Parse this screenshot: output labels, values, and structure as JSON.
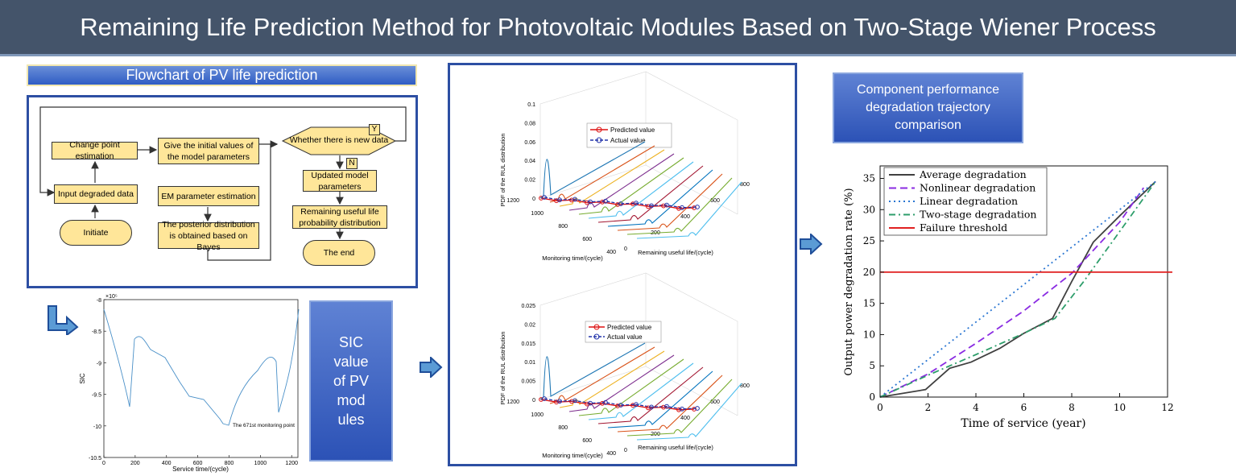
{
  "title": "Remaining Life Prediction Method for Photovoltaic Modules Based on Two-Stage Wiener Process",
  "flowchart": {
    "heading": "Flowchart of PV life prediction",
    "boxes": {
      "change_point": "Change point estimation",
      "initial_values": "Give the initial values of the model parameters",
      "input_data": "Input degraded data",
      "initiate": "Initiate",
      "em": "EM parameter estimation",
      "posterior": "The posterior distribution is obtained based on Bayes",
      "decision": "Whether there is new data",
      "updated": "Updated model parameters",
      "rul_dist": "Remaining useful life probability distribution",
      "end": "The end"
    },
    "yes_label": "Y",
    "no_label": "N"
  },
  "sic_panel": "SIC value of PV mod ules",
  "sic_chart": {
    "ylabel": "SIC",
    "xlabel": "Service time/(cycle)",
    "exponent": "×10⁵",
    "yticks": [
      "-8",
      "-8.5",
      "-9",
      "-9.5",
      "-10",
      "-10.5"
    ],
    "xticks": [
      "0",
      "200",
      "400",
      "600",
      "800",
      "1000",
      "1200"
    ],
    "annotation": "The 671st monitoring point",
    "color": "#4a90c8"
  },
  "rul_top": {
    "zlabel": "PDF of the RUL distribution",
    "xlabel": "Monitoring time/(cycle)",
    "ylabel": "Remaining useful life/(cycle)",
    "zticks": [
      "0",
      "0.02",
      "0.04",
      "0.06",
      "0.08",
      "0.1"
    ],
    "mt_ticks": [
      "1200",
      "1000",
      "800",
      "600",
      "400"
    ],
    "rul_ticks": [
      "0",
      "200",
      "400",
      "600",
      "800"
    ],
    "legend": [
      "Predicted value",
      "Actual value"
    ]
  },
  "rul_bottom": {
    "zlabel": "PDF of the RUL distribution",
    "xlabel": "Monitoring time/(cycle)",
    "ylabel": "Remaining useful life/(cycle)",
    "zticks": [
      "0",
      "0.005",
      "0.01",
      "0.015",
      "0.02",
      "0.025"
    ],
    "mt_ticks": [
      "1200",
      "1000",
      "800",
      "600",
      "400"
    ],
    "rul_ticks": [
      "0",
      "200",
      "400",
      "600",
      "800"
    ],
    "legend": [
      "Predicted value",
      "Actual value"
    ]
  },
  "degradation_panel": "Component performance degradation trajectory comparison",
  "chart_data": {
    "type": "line",
    "xlabel": "Time of service (year)",
    "ylabel": "Output power degradation rate (%)",
    "xlim": [
      0,
      12
    ],
    "ylim": [
      0,
      37
    ],
    "xticks": [
      "0",
      "2",
      "4",
      "6",
      "8",
      "10",
      "12"
    ],
    "yticks": [
      "0",
      "5",
      "10",
      "15",
      "20",
      "25",
      "30",
      "35"
    ],
    "legend_position": "top-left",
    "grid": false,
    "series": [
      {
        "name": "Average degradation",
        "color": "#404040",
        "dash": "solid",
        "x": [
          0,
          1.9,
          2.9,
          3.8,
          5,
          6,
          7.2,
          8,
          8.9,
          10,
          11.5
        ],
        "y": [
          0,
          1.2,
          4.6,
          5.6,
          7.8,
          10.2,
          12.6,
          18.5,
          24.8,
          29,
          34.5
        ]
      },
      {
        "name": "Nonlinear degradation",
        "color": "#8a2be2",
        "dash": "dash",
        "x": [
          0,
          2,
          4,
          6,
          8,
          10,
          11
        ],
        "y": [
          0,
          3.7,
          8.6,
          13.8,
          19.8,
          28,
          33.5
        ]
      },
      {
        "name": "Linear degradation",
        "color": "#2a76d2",
        "dash": "dot",
        "x": [
          0,
          11.5
        ],
        "y": [
          0,
          34.5
        ]
      },
      {
        "name": "Two-stage degradation",
        "color": "#2e9e6b",
        "dash": "dashdot",
        "x": [
          0,
          2,
          4,
          6,
          7.3,
          8.5,
          10,
          11.5
        ],
        "y": [
          0,
          3.5,
          6.8,
          10.2,
          12.6,
          18.5,
          26.5,
          34.5
        ]
      },
      {
        "name": "Failure threshold",
        "color": "#e02020",
        "dash": "solid",
        "x": [
          0,
          12.2
        ],
        "y": [
          20,
          20
        ]
      }
    ]
  }
}
